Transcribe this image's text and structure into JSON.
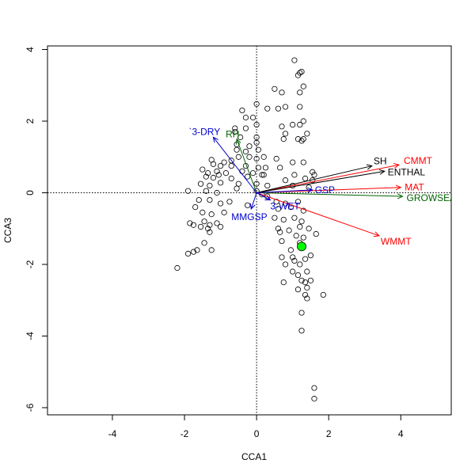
{
  "chart_data": {
    "type": "scatter",
    "title": "",
    "xlabel": "CCA1",
    "ylabel": "CCA3",
    "xlim": [
      -5.8,
      5.4
    ],
    "ylim": [
      -6.2,
      4.1
    ],
    "x_ticks": [
      -4,
      -2,
      0,
      2,
      4
    ],
    "y_ticks": [
      -6,
      -4,
      -2,
      0,
      2,
      4
    ],
    "reference_lines": {
      "x": 0,
      "y": 0,
      "style": "dotted"
    },
    "points": [
      [
        1.05,
        3.7
      ],
      [
        1.2,
        3.35
      ],
      [
        1.15,
        3.28
      ],
      [
        1.25,
        3.38
      ],
      [
        1.3,
        2.97
      ],
      [
        0.5,
        2.9
      ],
      [
        0.7,
        2.8
      ],
      [
        1.2,
        2.8
      ],
      [
        -0.4,
        2.3
      ],
      [
        0.0,
        2.48
      ],
      [
        0.3,
        2.35
      ],
      [
        0.6,
        2.35
      ],
      [
        0.8,
        2.4
      ],
      [
        1.2,
        2.4
      ],
      [
        -0.3,
        2.1
      ],
      [
        -0.1,
        2.1
      ],
      [
        -0.6,
        1.8
      ],
      [
        -0.3,
        1.8
      ],
      [
        0.0,
        1.9
      ],
      [
        0.7,
        1.85
      ],
      [
        1.0,
        1.9
      ],
      [
        1.2,
        1.9
      ],
      [
        1.3,
        2.0
      ],
      [
        0.8,
        1.65
      ],
      [
        1.15,
        1.5
      ],
      [
        -0.6,
        1.7
      ],
      [
        -0.45,
        1.55
      ],
      [
        0.0,
        1.55
      ],
      [
        0.75,
        1.5
      ],
      [
        1.4,
        1.65
      ],
      [
        1.25,
        1.45
      ],
      [
        -0.55,
        1.35
      ],
      [
        -0.2,
        1.3
      ],
      [
        0.05,
        1.2
      ],
      [
        1.3,
        1.5
      ],
      [
        -0.55,
        1.2
      ],
      [
        -0.3,
        1.15
      ],
      [
        0.0,
        1.4
      ],
      [
        -0.9,
        0.85
      ],
      [
        -0.7,
        0.9
      ],
      [
        -0.5,
        1.0
      ],
      [
        -0.2,
        1.0
      ],
      [
        0.0,
        0.95
      ],
      [
        0.2,
        1.0
      ],
      [
        0.55,
        0.95
      ],
      [
        -1.25,
        0.92
      ],
      [
        -1.2,
        0.8
      ],
      [
        -1.0,
        0.75
      ],
      [
        -0.7,
        0.75
      ],
      [
        -0.3,
        0.75
      ],
      [
        0.05,
        0.7
      ],
      [
        0.25,
        0.7
      ],
      [
        0.65,
        0.7
      ],
      [
        1.0,
        0.85
      ],
      [
        1.3,
        0.85
      ],
      [
        -1.5,
        0.65
      ],
      [
        -1.35,
        0.55
      ],
      [
        -1.1,
        0.6
      ],
      [
        -0.85,
        0.55
      ],
      [
        -0.4,
        0.6
      ],
      [
        -0.1,
        0.55
      ],
      [
        0.2,
        0.5
      ],
      [
        1.55,
        0.58
      ],
      [
        1.6,
        0.5
      ],
      [
        -1.4,
        0.45
      ],
      [
        -1.2,
        0.42
      ],
      [
        -1.05,
        0.5
      ],
      [
        -0.25,
        0.45
      ],
      [
        0.15,
        0.5
      ],
      [
        1.05,
        0.5
      ],
      [
        1.35,
        0.4
      ],
      [
        1.55,
        0.35
      ],
      [
        -1.55,
        0.25
      ],
      [
        -1.3,
        0.2
      ],
      [
        -1.0,
        0.28
      ],
      [
        -0.7,
        0.4
      ],
      [
        -0.5,
        0.25
      ],
      [
        0.0,
        0.25
      ],
      [
        0.3,
        0.2
      ],
      [
        0.8,
        0.35
      ],
      [
        1.0,
        0.2
      ],
      [
        1.45,
        0.15
      ],
      [
        -1.9,
        0.05
      ],
      [
        -1.4,
        0.05
      ],
      [
        -1.1,
        0.0
      ],
      [
        -0.55,
        0.12
      ],
      [
        0.0,
        0.05
      ],
      [
        0.15,
        -0.05
      ],
      [
        0.3,
        -0.1
      ],
      [
        0.55,
        -0.25
      ],
      [
        0.8,
        -0.3
      ],
      [
        1.15,
        -0.25
      ],
      [
        -1.6,
        -0.2
      ],
      [
        -1.3,
        -0.2
      ],
      [
        -1.0,
        -0.3
      ],
      [
        -0.75,
        -0.25
      ],
      [
        -1.7,
        -0.4
      ],
      [
        -1.5,
        -0.55
      ],
      [
        -1.25,
        -0.6
      ],
      [
        -0.9,
        -0.55
      ],
      [
        -0.25,
        -0.35
      ],
      [
        0.6,
        -0.45
      ],
      [
        0.95,
        -0.4
      ],
      [
        1.3,
        -0.5
      ],
      [
        -1.45,
        -0.8
      ],
      [
        -1.3,
        -0.9
      ],
      [
        -1.1,
        -0.85
      ],
      [
        -1.0,
        -0.95
      ],
      [
        0.5,
        -0.7
      ],
      [
        0.75,
        -0.75
      ],
      [
        1.05,
        -0.7
      ],
      [
        1.25,
        -0.8
      ],
      [
        -1.85,
        -0.85
      ],
      [
        -1.75,
        -0.9
      ],
      [
        -1.55,
        -0.95
      ],
      [
        -1.35,
        -1.0
      ],
      [
        0.6,
        -1.0
      ],
      [
        0.9,
        -1.05
      ],
      [
        1.2,
        -0.95
      ],
      [
        1.45,
        -1.0
      ],
      [
        -1.3,
        -1.1
      ],
      [
        0.65,
        -1.1
      ],
      [
        1.1,
        -1.2
      ],
      [
        1.65,
        -1.15
      ],
      [
        -1.45,
        -1.4
      ],
      [
        1.3,
        -1.25
      ],
      [
        -1.65,
        -1.6
      ],
      [
        0.7,
        -1.35
      ],
      [
        -1.25,
        -1.6
      ],
      [
        0.95,
        -1.6
      ],
      [
        1.2,
        -1.4
      ],
      [
        -1.9,
        -1.7
      ],
      [
        -1.75,
        -1.65
      ],
      [
        0.7,
        -1.8
      ],
      [
        1.0,
        -1.8
      ],
      [
        1.5,
        -1.75
      ],
      [
        -2.2,
        -2.1
      ],
      [
        0.8,
        -2.0
      ],
      [
        1.05,
        -1.9
      ],
      [
        1.2,
        -2.0
      ],
      [
        1.35,
        -1.85
      ],
      [
        0.75,
        -2.5
      ],
      [
        1.15,
        -2.3
      ],
      [
        1.0,
        -2.2
      ],
      [
        1.4,
        -2.2
      ],
      [
        1.15,
        -2.7
      ],
      [
        1.25,
        -2.45
      ],
      [
        1.35,
        -2.5
      ],
      [
        1.5,
        -2.45
      ],
      [
        1.4,
        -2.65
      ],
      [
        1.35,
        -2.85
      ],
      [
        1.4,
        -2.95
      ],
      [
        1.85,
        -2.85
      ],
      [
        1.25,
        -3.35
      ],
      [
        1.25,
        -3.85
      ],
      [
        1.6,
        -5.45
      ],
      [
        1.6,
        -5.75
      ]
    ],
    "highlight_point": {
      "x": 1.25,
      "y": -1.5,
      "color": "#00ff00"
    },
    "vectors": [
      {
        "label": "CMMT",
        "x": 3.95,
        "y": 0.78,
        "color": "#ff0000"
      },
      {
        "label": "SH",
        "x": 3.2,
        "y": 0.75,
        "color": "#000000"
      },
      {
        "label": "ENTHAL",
        "x": 3.55,
        "y": 0.6,
        "color": "#000000"
      },
      {
        "label": "MAT",
        "x": 4.0,
        "y": 0.15,
        "color": "#ff0000"
      },
      {
        "label": "GROWSEAS",
        "x": 4.05,
        "y": -0.1,
        "color": "#006400"
      },
      {
        "label": "WMMT",
        "x": 3.4,
        "y": -1.2,
        "color": "#ff0000"
      },
      {
        "label": "GSP",
        "x": 1.55,
        "y": 0.08,
        "color": "#0000cd"
      },
      {
        "label": "3-WET",
        "x": 0.38,
        "y": -0.2,
        "color": "#0000cd"
      },
      {
        "label": "MMGSP",
        "x": -0.15,
        "y": -0.45,
        "color": "#0000cd"
      },
      {
        "label": "RH",
        "x": -0.55,
        "y": 1.5,
        "color": "#006400"
      },
      {
        "label": "`3-DRY",
        "x": -1.2,
        "y": 1.55,
        "color": "#0000cd"
      }
    ]
  }
}
